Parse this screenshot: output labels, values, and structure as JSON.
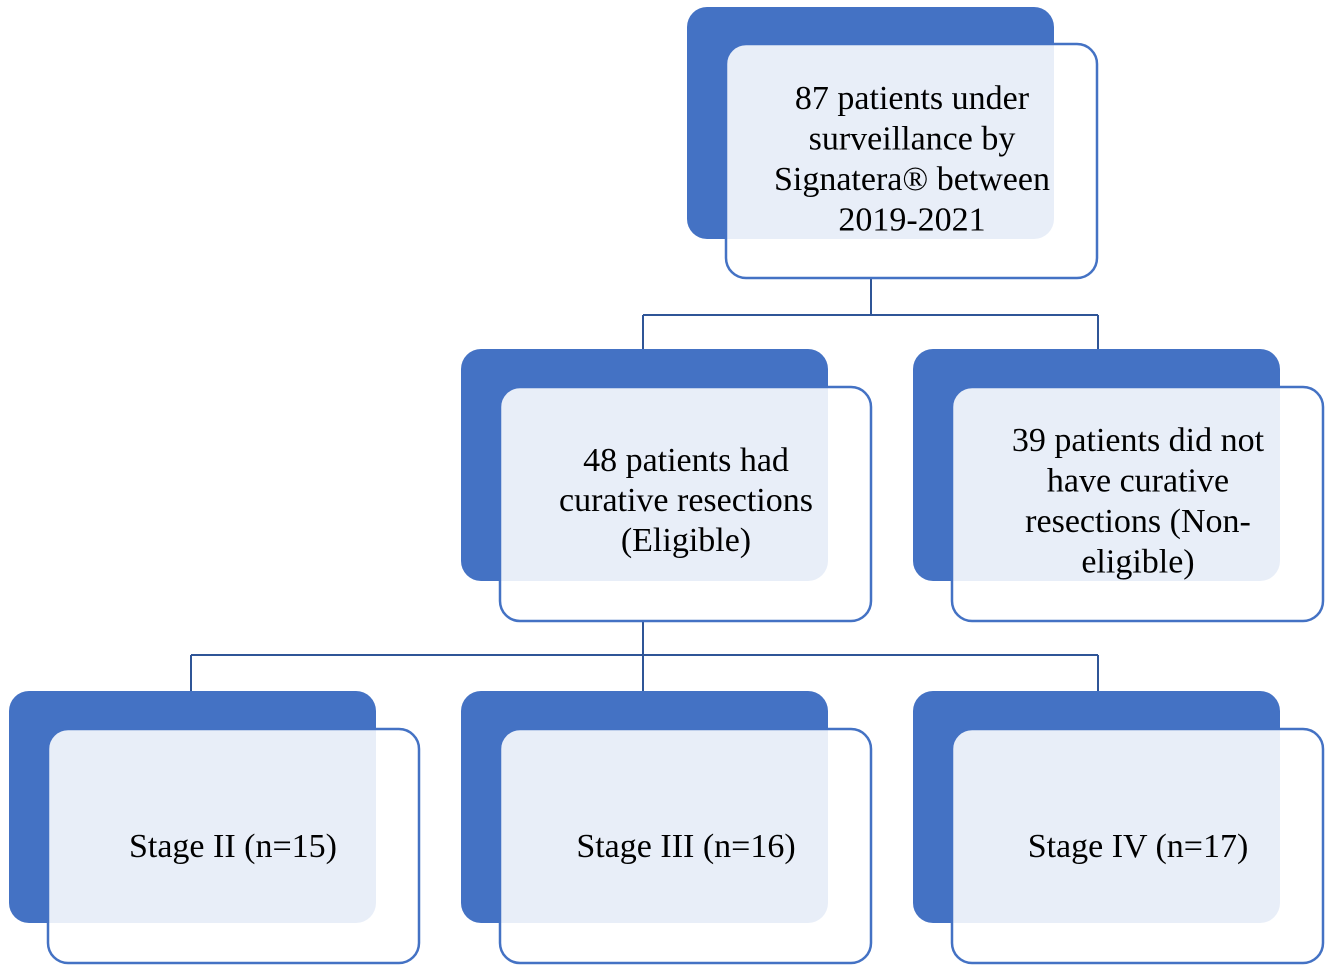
{
  "nodes": [
    {
      "lines": [
        "87 patients under",
        "surveillance by",
        "Signatera® between",
        "2019-2021"
      ]
    },
    {
      "lines": [
        "48 patients had",
        "curative resections",
        "(Eligible)"
      ]
    },
    {
      "lines": [
        "39 patients did not",
        "have curative",
        "resections (Non-",
        "eligible)"
      ]
    },
    {
      "lines": [
        "Stage II (n=15)"
      ]
    },
    {
      "lines": [
        "Stage III (n=16)"
      ]
    },
    {
      "lines": [
        "Stage IV (n=17)"
      ]
    }
  ]
}
